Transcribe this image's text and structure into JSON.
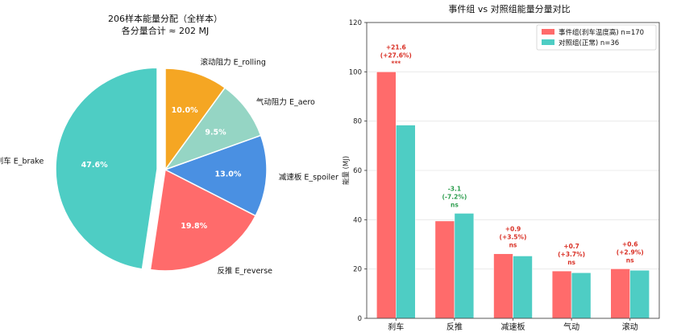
{
  "chart_data": [
    {
      "type": "pie",
      "title": "206样本能量分配（全样本）",
      "subtitle": "各分量合计 ≈ 202 MJ",
      "slices": [
        {
          "label": "刹车 E_brake",
          "pct": 47.6,
          "pct_label": "47.6%",
          "color": "#4ECDC4",
          "explode": true
        },
        {
          "label": "反推 E_reverse",
          "pct": 19.8,
          "pct_label": "19.8%",
          "color": "#FF6B6B",
          "explode": false
        },
        {
          "label": "减速板 E_spoiler",
          "pct": 13.0,
          "pct_label": "13.0%",
          "color": "#4A90E2",
          "explode": false
        },
        {
          "label": "气动阻力 E_aero",
          "pct": 9.5,
          "pct_label": "9.5%",
          "color": "#95D5C4",
          "explode": false
        },
        {
          "label": "滚动阻力 E_rolling",
          "pct": 10.0,
          "pct_label": "10.0%",
          "color": "#F5A623",
          "explode": false
        }
      ]
    },
    {
      "type": "bar",
      "title": "事件组 vs 对照组能量分量对比",
      "xlabel": "",
      "ylabel": "能量 (MJ)",
      "ylim": [
        0,
        120
      ],
      "yticks": [
        "0",
        "20",
        "40",
        "60",
        "80",
        "100",
        "120"
      ],
      "grid": true,
      "legend_position": "top-right",
      "categories": [
        "刹车",
        "反推",
        "减速板",
        "气动",
        "滚动"
      ],
      "series": [
        {
          "name": "事件组(刹车温度高) n=170",
          "color": "#FF6B6B",
          "values": [
            100.0,
            39.5,
            26.2,
            19.2,
            20.1
          ]
        },
        {
          "name": "对照组(正常) n=36",
          "color": "#4ECDC4",
          "values": [
            78.4,
            42.6,
            25.3,
            18.5,
            19.5
          ]
        }
      ],
      "annotations": [
        {
          "diff": "+21.6",
          "pct": "(+27.6%)",
          "sig": "***",
          "color": "#D93025"
        },
        {
          "diff": "-3.1",
          "pct": "(-7.2%)",
          "sig": "ns",
          "color": "#2E9E4F"
        },
        {
          "diff": "+0.9",
          "pct": "(+3.5%)",
          "sig": "ns",
          "color": "#D93025"
        },
        {
          "diff": "+0.7",
          "pct": "(+3.7%)",
          "sig": "ns",
          "color": "#D93025"
        },
        {
          "diff": "+0.6",
          "pct": "(+2.9%)",
          "sig": "ns",
          "color": "#D93025"
        }
      ]
    }
  ]
}
